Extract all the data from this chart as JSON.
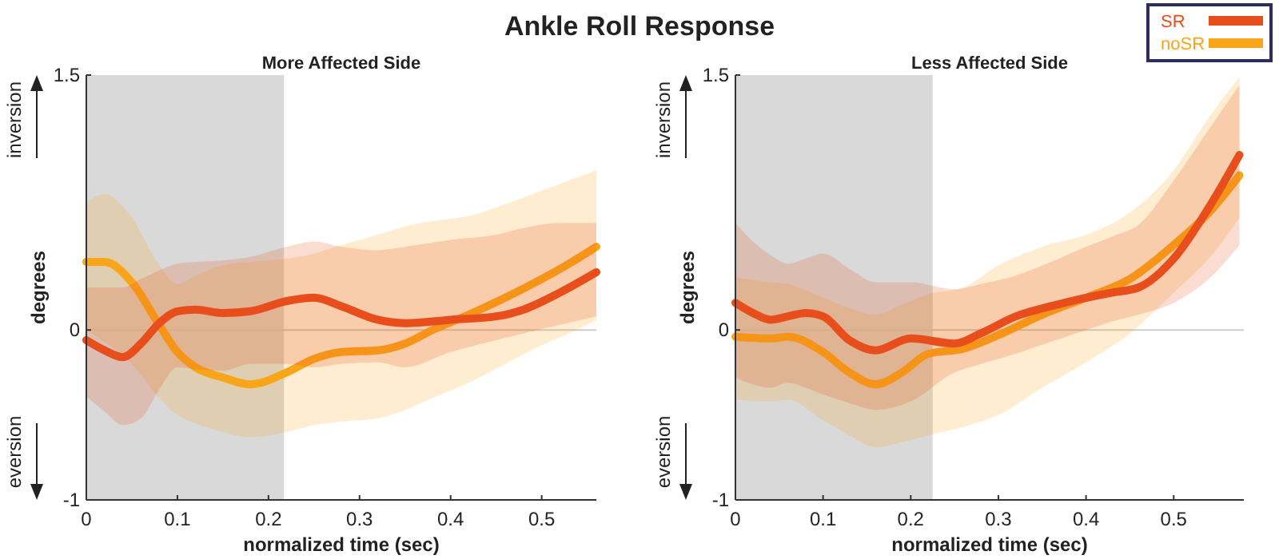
{
  "chart_data": [
    {
      "type": "line",
      "title": "Ankle Roll Response",
      "subtitle": "More Affected Side",
      "xlabel": "normalized time (sec)",
      "ylabel": "degrees",
      "annotations": [
        "inversion",
        "eversion"
      ],
      "xlim": [
        0,
        0.56
      ],
      "xticks": [
        0,
        0.1,
        0.2,
        0.3,
        0.4,
        0.5
      ],
      "ylim": [
        -1,
        1.5
      ],
      "yticks": [
        -1,
        0,
        1.5
      ],
      "bands": [
        {
          "axis": "x",
          "from": 0,
          "to": 0.217,
          "color": "#d9d9d9"
        }
      ],
      "ref_lines": [
        {
          "axis": "y",
          "value": 0,
          "color": "#cccccc"
        }
      ],
      "legend": false,
      "grid": false,
      "series": [
        {
          "color": "#f9a51a",
          "x": [
            0,
            0.02,
            0.05,
            0.08,
            0.1,
            0.12,
            0.15,
            0.18,
            0.22,
            0.25,
            0.28,
            0.32,
            0.35,
            0.38,
            0.42,
            0.46,
            0.5,
            0.53,
            0.56
          ],
          "values": [
            0.4,
            0.4,
            0.28,
            0.03,
            -0.13,
            -0.22,
            -0.28,
            -0.32,
            -0.25,
            -0.17,
            -0.13,
            -0.12,
            -0.08,
            0,
            0.09,
            0.19,
            0.3,
            0.39,
            0.49
          ],
          "upper": [
            0.75,
            0.8,
            0.66,
            0.38,
            0.27,
            0.32,
            0.38,
            0.4,
            0.42,
            0.45,
            0.5,
            0.56,
            0.61,
            0.64,
            0.67,
            0.74,
            0.82,
            0.88,
            0.94
          ],
          "lower": [
            0,
            -0.07,
            -0.2,
            -0.4,
            -0.5,
            -0.55,
            -0.6,
            -0.63,
            -0.6,
            -0.56,
            -0.54,
            -0.52,
            -0.47,
            -0.4,
            -0.31,
            -0.2,
            -0.09,
            -0.02,
            0.06
          ]
        },
        {
          "color": "#e84e1b",
          "x": [
            0,
            0.02,
            0.04,
            0.06,
            0.08,
            0.1,
            0.12,
            0.15,
            0.18,
            0.22,
            0.25,
            0.28,
            0.32,
            0.35,
            0.4,
            0.45,
            0.48,
            0.52,
            0.56
          ],
          "values": [
            -0.06,
            -0.12,
            -0.16,
            -0.08,
            0.04,
            0.11,
            0.12,
            0.1,
            0.11,
            0.17,
            0.19,
            0.14,
            0.06,
            0.04,
            0.06,
            0.08,
            0.12,
            0.22,
            0.34
          ],
          "upper": [
            0.25,
            0.25,
            0.25,
            0.3,
            0.35,
            0.39,
            0.4,
            0.41,
            0.43,
            0.49,
            0.52,
            0.49,
            0.47,
            0.49,
            0.53,
            0.56,
            0.6,
            0.63,
            0.63
          ],
          "lower": [
            -0.39,
            -0.48,
            -0.56,
            -0.52,
            -0.35,
            -0.22,
            -0.23,
            -0.24,
            -0.2,
            -0.2,
            -0.22,
            -0.2,
            -0.19,
            -0.22,
            -0.13,
            -0.06,
            -0.02,
            0.03,
            0.08
          ]
        }
      ]
    },
    {
      "type": "line",
      "subtitle": "Less Affected Side",
      "xlabel": "normalized time (sec)",
      "ylabel": "degrees",
      "annotations": [
        "inversion",
        "eversion"
      ],
      "xlim": [
        0,
        0.58
      ],
      "xticks": [
        0,
        0.1,
        0.2,
        0.3,
        0.4,
        0.5
      ],
      "ylim": [
        -1,
        1.5
      ],
      "yticks": [
        -1,
        0,
        1.5
      ],
      "bands": [
        {
          "axis": "x",
          "from": 0,
          "to": 0.225,
          "color": "#d9d9d9"
        }
      ],
      "ref_lines": [
        {
          "axis": "y",
          "value": 0,
          "color": "#cccccc"
        }
      ],
      "legend": "top right",
      "grid": false,
      "series": [
        {
          "name": "noSR",
          "color": "#f9a51a",
          "x": [
            0,
            0.04,
            0.06,
            0.1,
            0.13,
            0.16,
            0.19,
            0.22,
            0.26,
            0.3,
            0.35,
            0.4,
            0.45,
            0.5,
            0.54,
            0.575
          ],
          "values": [
            -0.04,
            -0.05,
            -0.04,
            -0.13,
            -0.25,
            -0.32,
            -0.25,
            -0.14,
            -0.11,
            -0.03,
            0.09,
            0.19,
            0.3,
            0.5,
            0.69,
            0.91
          ],
          "upper": [
            0.31,
            0.28,
            0.27,
            0.19,
            0.13,
            0.09,
            0.15,
            0.21,
            0.25,
            0.38,
            0.49,
            0.56,
            0.69,
            0.94,
            1.25,
            1.49
          ],
          "lower": [
            -0.41,
            -0.42,
            -0.41,
            -0.53,
            -0.62,
            -0.69,
            -0.66,
            -0.62,
            -0.57,
            -0.5,
            -0.34,
            -0.19,
            -0.02,
            0.22,
            0.42,
            0.66
          ]
        },
        {
          "name": "SR",
          "color": "#e84e1b",
          "x": [
            0,
            0.02,
            0.04,
            0.06,
            0.08,
            0.1,
            0.13,
            0.16,
            0.2,
            0.25,
            0.28,
            0.32,
            0.36,
            0.4,
            0.43,
            0.46,
            0.5,
            0.54,
            0.575
          ],
          "values": [
            0.16,
            0.1,
            0.06,
            0.08,
            0.1,
            0.08,
            -0.06,
            -0.12,
            -0.05,
            -0.08,
            -0.02,
            0.08,
            0.14,
            0.19,
            0.22,
            0.25,
            0.42,
            0.72,
            1.03
          ],
          "upper": [
            0.63,
            0.52,
            0.44,
            0.39,
            0.42,
            0.45,
            0.36,
            0.28,
            0.28,
            0.24,
            0.27,
            0.32,
            0.4,
            0.49,
            0.55,
            0.62,
            0.88,
            1.18,
            1.44
          ],
          "lower": [
            -0.28,
            -0.32,
            -0.34,
            -0.31,
            -0.34,
            -0.38,
            -0.43,
            -0.47,
            -0.42,
            -0.25,
            -0.2,
            -0.14,
            -0.07,
            0,
            0.05,
            0.09,
            0.16,
            0.3,
            0.5
          ]
        }
      ]
    }
  ]
}
